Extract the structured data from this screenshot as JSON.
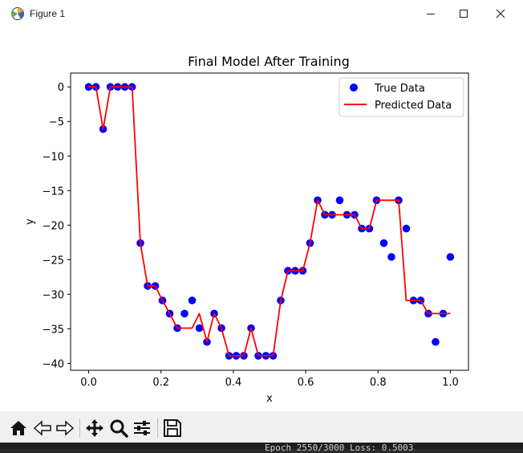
{
  "window": {
    "title": "Figure 1",
    "controls": [
      "minimize-icon",
      "maximize-icon",
      "close-icon"
    ]
  },
  "toolbar": {
    "buttons": [
      "home-icon",
      "back-arrow-icon",
      "forward-arrow-icon",
      "pan-icon",
      "zoom-icon",
      "configure-subplots-icon",
      "save-icon"
    ]
  },
  "background": {
    "terminal_text": "Epoch 2550/3000  Loss: 0.5003"
  },
  "chart_data": {
    "type": "scatter",
    "title": "Final Model After Training",
    "xlabel": "x",
    "ylabel": "y",
    "xlim": [
      -0.05,
      1.05
    ],
    "ylim": [
      -41,
      2
    ],
    "xticks": [
      0.0,
      0.2,
      0.4,
      0.6,
      0.8,
      1.0
    ],
    "xtick_labels": [
      "0.0",
      "0.2",
      "0.4",
      "0.6",
      "0.8",
      "1.0"
    ],
    "yticks": [
      0,
      -5,
      -10,
      -15,
      -20,
      -25,
      -30,
      -35,
      -40
    ],
    "ytick_labels": [
      "0",
      "−5",
      "−10",
      "−15",
      "−20",
      "−25",
      "−30",
      "−35",
      "−40"
    ],
    "legend": {
      "placement": "top-right",
      "entries": [
        "True Data",
        "Predicted Data"
      ]
    },
    "colors": {
      "true": "#0000ff",
      "predicted": "#ff0000"
    },
    "series": [
      {
        "name": "True Data",
        "style": "scatter",
        "x": [
          0.0,
          0.02,
          0.04,
          0.06,
          0.08,
          0.1,
          0.12,
          0.143,
          0.163,
          0.184,
          0.204,
          0.224,
          0.245,
          0.265,
          0.286,
          0.306,
          0.327,
          0.347,
          0.367,
          0.388,
          0.408,
          0.429,
          0.449,
          0.469,
          0.49,
          0.51,
          0.531,
          0.551,
          0.571,
          0.592,
          0.612,
          0.633,
          0.653,
          0.673,
          0.694,
          0.714,
          0.735,
          0.755,
          0.776,
          0.796,
          0.816,
          0.837,
          0.857,
          0.878,
          0.898,
          0.918,
          0.939,
          0.959,
          0.98,
          1.0
        ],
        "y": [
          0,
          0,
          -6.1,
          0,
          0,
          0,
          0,
          -22.6,
          -28.8,
          -28.8,
          -30.9,
          -32.8,
          -34.9,
          -32.8,
          -30.9,
          -34.9,
          -36.9,
          -32.8,
          -34.9,
          -38.9,
          -38.9,
          -38.9,
          -34.9,
          -38.9,
          -38.9,
          -38.9,
          -30.9,
          -26.6,
          -26.6,
          -26.6,
          -22.6,
          -16.4,
          -18.5,
          -18.5,
          -16.4,
          -18.5,
          -18.5,
          -20.5,
          -20.5,
          -16.4,
          -22.6,
          -24.6,
          -16.4,
          -20.5,
          -30.9,
          -30.9,
          -32.8,
          -36.9,
          -32.8,
          -24.6
        ]
      },
      {
        "name": "Predicted Data",
        "style": "line",
        "x": [
          0.0,
          0.02,
          0.04,
          0.06,
          0.08,
          0.1,
          0.12,
          0.143,
          0.163,
          0.184,
          0.204,
          0.224,
          0.245,
          0.265,
          0.286,
          0.306,
          0.327,
          0.347,
          0.367,
          0.388,
          0.408,
          0.429,
          0.449,
          0.469,
          0.49,
          0.51,
          0.531,
          0.551,
          0.571,
          0.592,
          0.612,
          0.633,
          0.653,
          0.673,
          0.694,
          0.714,
          0.735,
          0.755,
          0.776,
          0.796,
          0.816,
          0.837,
          0.857,
          0.878,
          0.898,
          0.918,
          0.939,
          0.959,
          0.98,
          1.0
        ],
        "y": [
          0,
          0,
          -6.1,
          0,
          0,
          0,
          0,
          -22.6,
          -28.8,
          -28.8,
          -30.9,
          -32.8,
          -34.9,
          -34.9,
          -34.9,
          -32.8,
          -36.9,
          -32.8,
          -34.9,
          -38.9,
          -38.9,
          -38.9,
          -34.9,
          -38.9,
          -38.9,
          -38.9,
          -30.9,
          -26.6,
          -26.6,
          -26.6,
          -22.6,
          -16.4,
          -18.5,
          -18.5,
          -18.5,
          -18.5,
          -18.5,
          -20.5,
          -20.5,
          -16.4,
          -16.4,
          -16.4,
          -16.4,
          -30.9,
          -30.9,
          -30.9,
          -32.8,
          -32.8,
          -32.8,
          -32.8
        ]
      }
    ]
  }
}
